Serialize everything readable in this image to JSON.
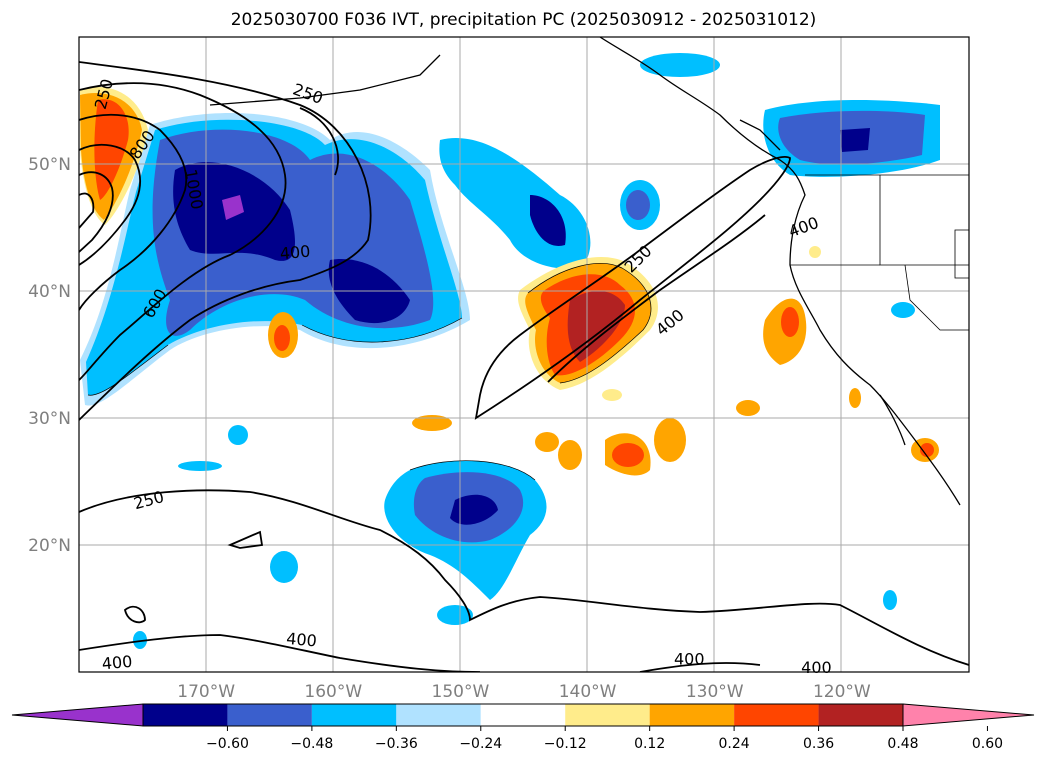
{
  "title": "2025030700 F036 IVT, precipitation PC (2025030912 - 2025031012)",
  "map": {
    "lon_range": [
      -180,
      -110
    ],
    "lat_range": [
      10,
      60
    ],
    "lat_labels": [
      {
        "lat": 50,
        "text": "50°N"
      },
      {
        "lat": 40,
        "text": "40°N"
      },
      {
        "lat": 30,
        "text": "30°N"
      },
      {
        "lat": 20,
        "text": "20°N"
      }
    ],
    "lon_labels": [
      {
        "lon": -170,
        "text": "170°W"
      },
      {
        "lon": -160,
        "text": "160°W"
      },
      {
        "lon": -150,
        "text": "150°W"
      },
      {
        "lon": -140,
        "text": "140°W"
      },
      {
        "lon": -130,
        "text": "130°W"
      },
      {
        "lon": -120,
        "text": "120°W"
      }
    ],
    "ivt_contour_labels": [
      {
        "text": "250",
        "lon": -178,
        "lat": 55.5,
        "rot": -75
      },
      {
        "text": "250",
        "lon": -162,
        "lat": 55.5,
        "rot": 20
      },
      {
        "text": "800",
        "lon": -175,
        "lat": 51.5,
        "rot": -55
      },
      {
        "text": "1000",
        "lon": -171,
        "lat": 48,
        "rot": 80
      },
      {
        "text": "400",
        "lon": -163,
        "lat": 43,
        "rot": -5
      },
      {
        "text": "600",
        "lon": -174,
        "lat": 39,
        "rot": -60
      },
      {
        "text": "250",
        "lon": -174.5,
        "lat": 23.5,
        "rot": -15
      },
      {
        "text": "400",
        "lon": -162.5,
        "lat": 12.5,
        "rot": 5
      },
      {
        "text": "400",
        "lon": -177,
        "lat": 10.7,
        "rot": -5
      },
      {
        "text": "250",
        "lon": -136,
        "lat": 42.5,
        "rot": -45
      },
      {
        "text": "400",
        "lon": -133.5,
        "lat": 37.5,
        "rot": -40
      },
      {
        "text": "400",
        "lon": -123,
        "lat": 45,
        "rot": -20
      },
      {
        "text": "400",
        "lon": -132,
        "lat": 11,
        "rot": 0
      },
      {
        "text": "400",
        "lon": -122,
        "lat": 10.3,
        "rot": 0
      }
    ]
  },
  "colorbar": {
    "labels": [
      "−0.60",
      "−0.48",
      "−0.36",
      "−0.24",
      "−0.12",
      "0.12",
      "0.24",
      "0.36",
      "0.48",
      "0.60"
    ],
    "colors": [
      "#9932cc",
      "#00008b",
      "#3a5fcd",
      "#00bfff",
      "#b0e2ff",
      "#ffffff",
      "#ffec8b",
      "#ffa500",
      "#ff4500",
      "#b22222",
      "#ff82ab"
    ]
  },
  "colors": {
    "very_neg": "#9932cc",
    "neg_dark": "#00008b",
    "neg_mid": "#3a5fcd",
    "neg_light": "#00bfff",
    "neg_pale": "#b0e2ff",
    "pos_pale": "#ffec8b",
    "pos_light": "#ffa500",
    "pos_mid": "#ff4500",
    "pos_dark": "#b22222"
  }
}
